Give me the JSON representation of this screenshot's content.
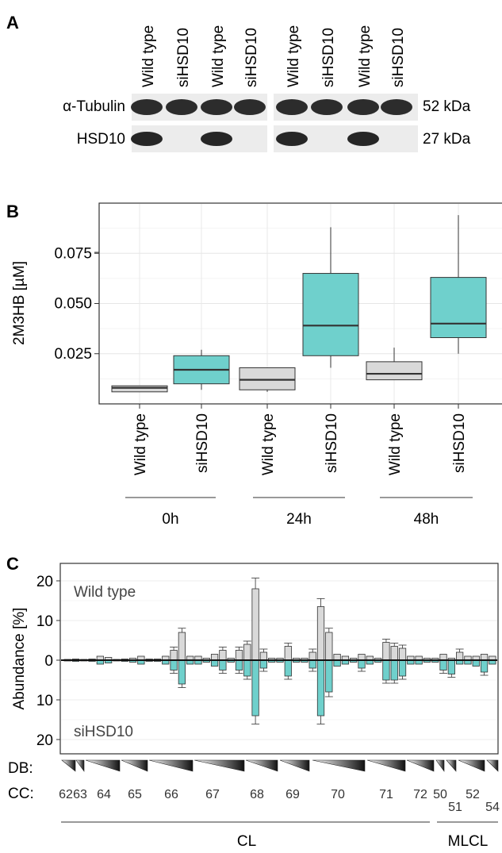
{
  "panel_labels": {
    "a": "A",
    "b": "B",
    "c": "C"
  },
  "panel_a": {
    "lane_labels": [
      "Wild type",
      "siHSD10",
      "Wild type",
      "siHSD10",
      "Wild type",
      "siHSD10",
      "Wild type",
      "siHSD10"
    ],
    "rows": [
      {
        "name": "α-Tubulin",
        "size": "52 kDa",
        "bands": [
          1,
          1,
          1,
          1,
          1,
          1,
          1,
          1
        ]
      },
      {
        "name": "HSD10",
        "size": "27 kDa",
        "bands": [
          1,
          0,
          1,
          0,
          1,
          0,
          1,
          0
        ]
      }
    ]
  },
  "chart_data": [
    {
      "type": "box",
      "ylabel": "2M3HB [µM]",
      "ylim": [
        0,
        0.1
      ],
      "yticks": [
        "0.025",
        "0.050",
        "0.075"
      ],
      "ytick_values": [
        0.025,
        0.05,
        0.075
      ],
      "grid": true,
      "categories": [
        "Wild type",
        "siHSD10",
        "Wild type",
        "siHSD10",
        "Wild type",
        "siHSD10"
      ],
      "groups": [
        "0h",
        "24h",
        "48h"
      ],
      "colors": {
        "Wild type": "#d9d9d9",
        "siHSD10": "#6fd0cc"
      },
      "boxes": [
        {
          "category": "Wild type",
          "group": "0h",
          "min": 0.006,
          "q1": 0.006,
          "median": 0.008,
          "q3": 0.009,
          "max": 0.009
        },
        {
          "category": "siHSD10",
          "group": "0h",
          "min": 0.007,
          "q1": 0.01,
          "median": 0.017,
          "q3": 0.024,
          "max": 0.027
        },
        {
          "category": "Wild type",
          "group": "24h",
          "min": 0.006,
          "q1": 0.007,
          "median": 0.012,
          "q3": 0.018,
          "max": 0.018
        },
        {
          "category": "siHSD10",
          "group": "24h",
          "min": 0.018,
          "q1": 0.024,
          "median": 0.039,
          "q3": 0.065,
          "max": 0.088
        },
        {
          "category": "Wild type",
          "group": "48h",
          "min": 0.012,
          "q1": 0.012,
          "median": 0.015,
          "q3": 0.021,
          "max": 0.028
        },
        {
          "category": "siHSD10",
          "group": "48h",
          "min": 0.025,
          "q1": 0.033,
          "median": 0.04,
          "q3": 0.063,
          "max": 0.094
        }
      ]
    },
    {
      "type": "bar",
      "ylabel": "Abundance [%]",
      "yticks": [
        "20",
        "10",
        "0",
        "10",
        "20"
      ],
      "ytick_values": [
        20,
        10,
        0,
        -10,
        -20
      ],
      "ylim": [
        -23,
        23
      ],
      "grid": true,
      "series": [
        {
          "name": "Wild type",
          "color": "#d9d9d9",
          "values": [
            0.2,
            0.3,
            0.2,
            0.3,
            1.0,
            0.7,
            0.2,
            0.3,
            0.5,
            1.0,
            0.3,
            0.3,
            1.0,
            2.5,
            7.0,
            1.0,
            1.0,
            0.5,
            1.5,
            2.5,
            0.5,
            2.5,
            4.0,
            18.0,
            2.0,
            0.5,
            0.5,
            3.5,
            0.5,
            0.5,
            2.0,
            13.5,
            7.0,
            1.5,
            1.0,
            0.5,
            1.5,
            1.0,
            0.5,
            4.5,
            3.5,
            3.0,
            1.0,
            1.0,
            0.5,
            0.5,
            1.5,
            0.5,
            2.0,
            1.0,
            1.0,
            1.5,
            1.0
          ]
        },
        {
          "name": "siHSD10",
          "color": "#6fd0cc",
          "values": [
            0.2,
            0.3,
            0.2,
            0.3,
            1.0,
            0.7,
            0.2,
            0.3,
            0.5,
            1.0,
            0.3,
            0.3,
            1.0,
            2.5,
            6.0,
            1.0,
            1.0,
            0.5,
            1.5,
            2.5,
            0.5,
            2.5,
            4.0,
            14.0,
            2.0,
            0.5,
            0.5,
            4.0,
            0.5,
            0.5,
            2.0,
            14.0,
            8.0,
            1.5,
            1.0,
            0.5,
            2.0,
            1.0,
            0.5,
            5.0,
            5.0,
            4.0,
            1.0,
            1.0,
            0.5,
            0.5,
            2.5,
            3.5,
            1.0,
            1.0,
            1.5,
            3.0,
            1.0
          ]
        }
      ],
      "in_plot_labels": {
        "top": "Wild type",
        "bottom": "siHSD10"
      },
      "row_labels": {
        "db": "DB:",
        "cc": "CC:"
      },
      "cc_labels": [
        "62",
        "63",
        "64",
        "65",
        "66",
        "67",
        "68",
        "69",
        "70",
        "71",
        "72",
        "50",
        "51",
        "52",
        "54"
      ],
      "classes": [
        "CL",
        "MLCL"
      ]
    }
  ]
}
